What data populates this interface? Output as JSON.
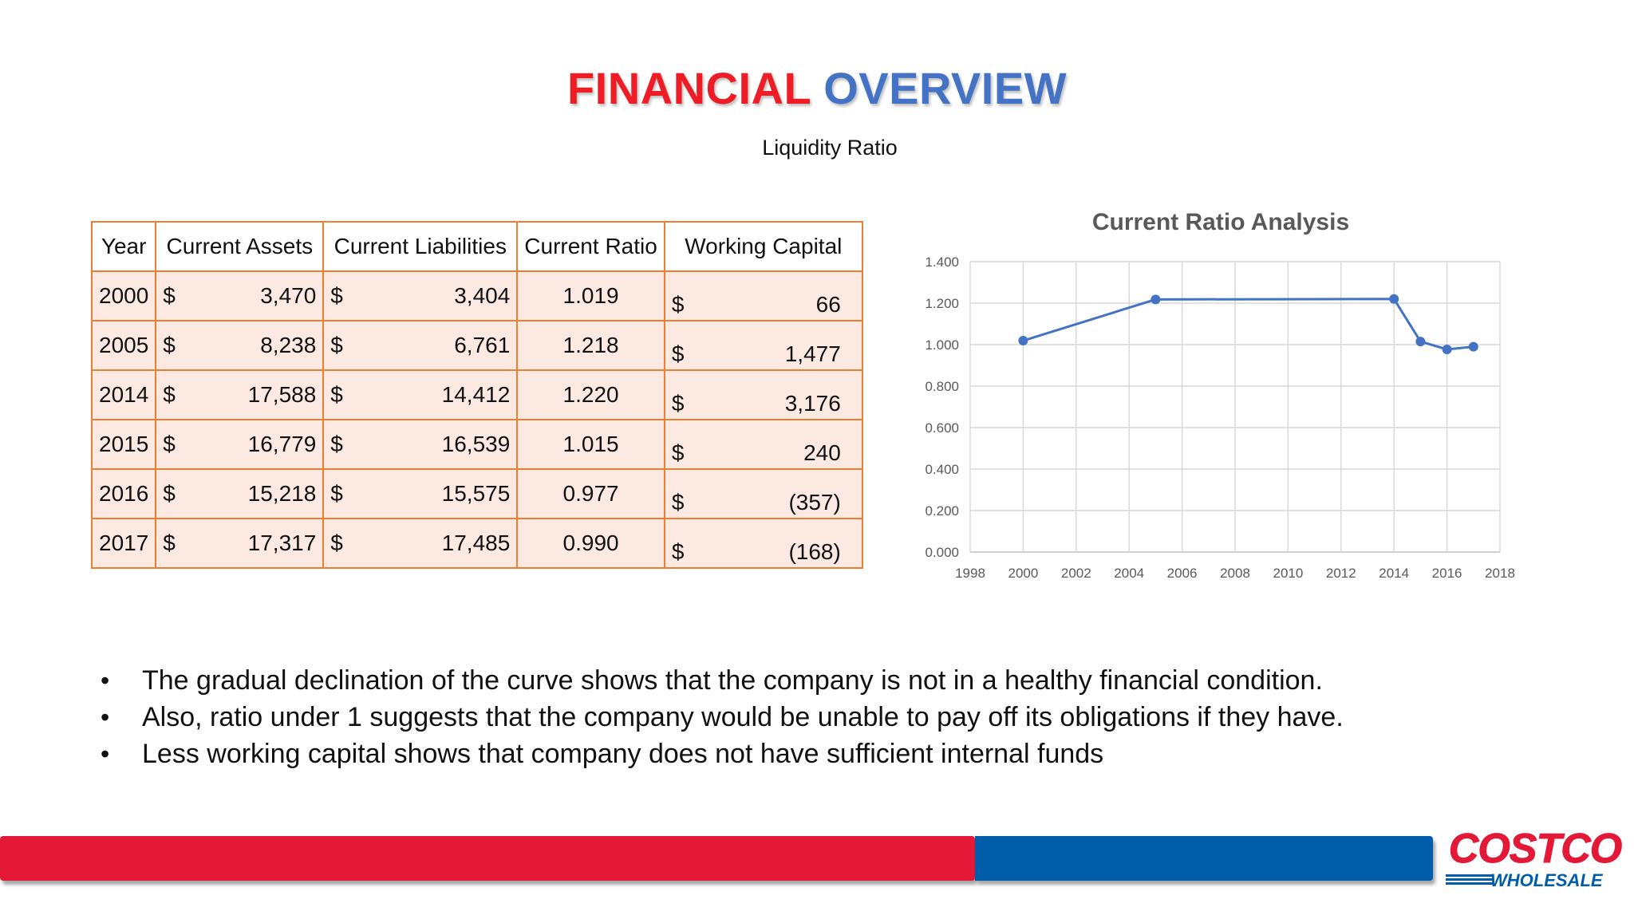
{
  "title": {
    "word1": "FINANCIAL",
    "word2": "OVERVIEW"
  },
  "subtitle": "Liquidity Ratio",
  "table": {
    "headers": [
      "Year",
      "Current Assets",
      "Current Liabilities",
      "Current Ratio",
      "Working Capital"
    ],
    "currency": "$",
    "rows": [
      {
        "year": "2000",
        "assets": "3,470",
        "liabilities": "3,404",
        "ratio": "1.019",
        "wc": "66"
      },
      {
        "year": "2005",
        "assets": "8,238",
        "liabilities": "6,761",
        "ratio": "1.218",
        "wc": "1,477"
      },
      {
        "year": "2014",
        "assets": "17,588",
        "liabilities": "14,412",
        "ratio": "1.220",
        "wc": "3,176"
      },
      {
        "year": "2015",
        "assets": "16,779",
        "liabilities": "16,539",
        "ratio": "1.015",
        "wc": "240"
      },
      {
        "year": "2016",
        "assets": "15,218",
        "liabilities": "15,575",
        "ratio": "0.977",
        "wc": "(357)"
      },
      {
        "year": "2017",
        "assets": "17,317",
        "liabilities": "17,485",
        "ratio": "0.990",
        "wc": "(168)"
      }
    ]
  },
  "chart_data": {
    "type": "line",
    "title": "Current Ratio Analysis",
    "xlabel": "",
    "ylabel": "",
    "x": [
      2000,
      2005,
      2014,
      2015,
      2016,
      2017
    ],
    "series": [
      {
        "values": [
          1.019,
          1.218,
          1.22,
          1.015,
          0.977,
          0.99
        ]
      }
    ],
    "xlim": [
      1998,
      2018
    ],
    "ylim": [
      0,
      1.4
    ],
    "xticks": [
      "1998",
      "2000",
      "2002",
      "2004",
      "2006",
      "2008",
      "2010",
      "2012",
      "2014",
      "2016",
      "2018"
    ],
    "yticks": [
      "0.000",
      "0.200",
      "0.400",
      "0.600",
      "0.800",
      "1.000",
      "1.200",
      "1.400"
    ],
    "grid": true,
    "legend": "none",
    "line_color": "#4472c4"
  },
  "bullets": [
    "The gradual declination of the curve shows that the company is not in a healthy financial condition.",
    "Also, ratio under 1 suggests that the company would be unable to pay off its obligations if they have.",
    "Less working capital shows that company does not have sufficient internal funds"
  ],
  "logo": {
    "top": "COSTCO",
    "bottom": "WHOLESALE"
  },
  "colors": {
    "red": "#e31937",
    "blue": "#005daa",
    "table_border": "#ed7d31",
    "table_fill": "#fce9e2"
  }
}
